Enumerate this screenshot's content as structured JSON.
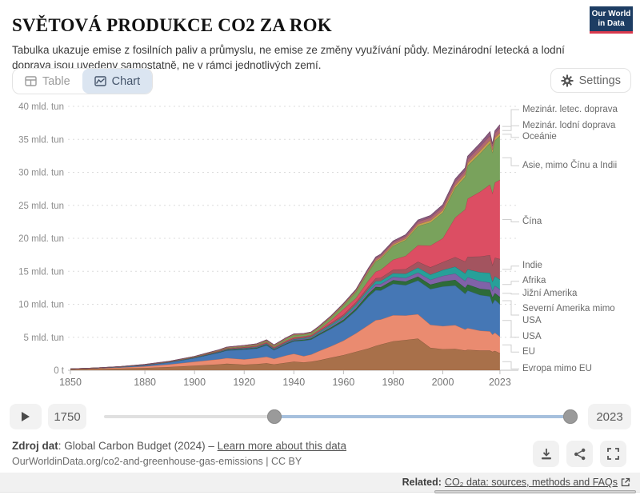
{
  "header": {
    "title": "SVĚTOVÁ PRODUKCE CO2 ZA ROK",
    "subtitle": "Tabulka ukazuje emise z fosilních paliv a průmyslu, ne emise ze změny využívání půdy. Mezinárodní letecká a lodní doprava jsou uvedeny samostatně, ne v rámci jednotlivých zemí.",
    "logo": {
      "line1": "Our World",
      "line2": "in Data",
      "bg": "#1d3d63",
      "accent": "#d93a4e"
    }
  },
  "toolbar": {
    "tab_table": "Table",
    "tab_chart": "Chart",
    "settings_label": "Settings"
  },
  "chart_data": {
    "type": "area",
    "stacked": true,
    "title": "SVĚTOVÁ PRODUKCE CO2 ZA ROK",
    "unit": "mld. tun",
    "y_zero_label": "0 t",
    "xlim": [
      1850,
      2024
    ],
    "ylim": [
      0,
      40
    ],
    "x_ticks": [
      1850,
      1880,
      1900,
      1920,
      1940,
      1960,
      1980,
      2000,
      2023
    ],
    "y_ticks": [
      5,
      10,
      15,
      20,
      25,
      30,
      35,
      40
    ],
    "grid": "horizontal-dashed",
    "legend_position": "right-connected",
    "years": [
      1850,
      1860,
      1870,
      1880,
      1890,
      1900,
      1910,
      1913,
      1920,
      1925,
      1929,
      1932,
      1937,
      1940,
      1944,
      1947,
      1950,
      1955,
      1960,
      1965,
      1970,
      1973,
      1975,
      1980,
      1985,
      1990,
      1995,
      2000,
      2005,
      2009,
      2010,
      2015,
      2019,
      2020,
      2021,
      2023
    ],
    "series": [
      {
        "name": "Evropa mimo EU",
        "color": "#a8704a",
        "values": [
          0.12,
          0.18,
          0.25,
          0.35,
          0.5,
          0.7,
          0.9,
          1.0,
          0.85,
          0.95,
          1.05,
          0.9,
          1.15,
          1.3,
          1.2,
          1.3,
          1.5,
          1.9,
          2.3,
          2.8,
          3.3,
          3.7,
          3.9,
          4.4,
          4.6,
          4.8,
          3.4,
          3.2,
          3.25,
          3.0,
          3.1,
          3.0,
          3.0,
          2.8,
          2.95,
          2.6
        ]
      },
      {
        "name": "EU",
        "color": "#ea8b70",
        "values": [
          0.06,
          0.1,
          0.16,
          0.25,
          0.4,
          0.6,
          0.78,
          0.85,
          0.8,
          0.9,
          1.0,
          0.85,
          1.1,
          1.2,
          0.95,
          1.1,
          1.4,
          1.75,
          2.2,
          2.8,
          3.55,
          3.9,
          3.8,
          3.95,
          3.7,
          3.7,
          3.5,
          3.5,
          3.6,
          3.2,
          3.3,
          3.0,
          2.9,
          2.6,
          2.75,
          2.5
        ]
      },
      {
        "name": "USA",
        "color": "#4577b5",
        "values": [
          0.02,
          0.05,
          0.1,
          0.15,
          0.3,
          0.55,
          1.0,
          1.15,
          1.5,
          1.45,
          1.75,
          1.3,
          1.7,
          1.9,
          2.35,
          2.25,
          2.4,
          2.65,
          2.9,
          3.45,
          4.3,
          4.55,
          4.4,
          4.75,
          4.6,
          5.1,
          5.4,
          6.0,
          6.0,
          5.4,
          5.7,
          5.4,
          5.3,
          4.7,
          5.0,
          4.9
        ]
      },
      {
        "name": "Severní Amerika mimo USA",
        "color": "#2d6b39",
        "values": [
          0.0,
          0.0,
          0.01,
          0.02,
          0.03,
          0.04,
          0.07,
          0.08,
          0.09,
          0.09,
          0.1,
          0.09,
          0.11,
          0.12,
          0.14,
          0.16,
          0.18,
          0.22,
          0.26,
          0.32,
          0.42,
          0.48,
          0.5,
          0.55,
          0.55,
          0.6,
          0.68,
          0.75,
          0.85,
          0.88,
          0.9,
          0.95,
          1.0,
          0.95,
          1.0,
          1.1
        ]
      },
      {
        "name": "Jižní Amerika",
        "color": "#8062a8",
        "values": [
          0.0,
          0.0,
          0.0,
          0.01,
          0.01,
          0.02,
          0.04,
          0.05,
          0.06,
          0.07,
          0.08,
          0.08,
          0.1,
          0.11,
          0.12,
          0.13,
          0.15,
          0.2,
          0.25,
          0.3,
          0.35,
          0.42,
          0.45,
          0.5,
          0.52,
          0.6,
          0.72,
          0.85,
          0.95,
          1.05,
          1.1,
          1.15,
          1.1,
          1.0,
          1.1,
          1.15
        ]
      },
      {
        "name": "Afrika",
        "color": "#27a099",
        "values": [
          0.0,
          0.0,
          0.0,
          0.01,
          0.01,
          0.02,
          0.03,
          0.04,
          0.05,
          0.06,
          0.07,
          0.07,
          0.08,
          0.09,
          0.11,
          0.13,
          0.15,
          0.2,
          0.25,
          0.3,
          0.35,
          0.45,
          0.48,
          0.55,
          0.65,
          0.75,
          0.8,
          0.9,
          1.05,
          1.15,
          1.2,
          1.35,
          1.45,
          1.4,
          1.45,
          1.5
        ]
      },
      {
        "name": "Indie",
        "color": "#a3545f",
        "values": [
          0.01,
          0.01,
          0.02,
          0.03,
          0.04,
          0.05,
          0.08,
          0.09,
          0.1,
          0.11,
          0.12,
          0.12,
          0.14,
          0.15,
          0.17,
          0.18,
          0.2,
          0.25,
          0.3,
          0.35,
          0.4,
          0.45,
          0.48,
          0.55,
          0.7,
          0.9,
          1.1,
          1.2,
          1.45,
          1.8,
          1.9,
          2.4,
          2.7,
          2.5,
          2.8,
          3.1
        ]
      },
      {
        "name": "Čína",
        "color": "#dc4e63",
        "values": [
          0.0,
          0.0,
          0.0,
          0.01,
          0.01,
          0.02,
          0.04,
          0.05,
          0.06,
          0.08,
          0.1,
          0.1,
          0.13,
          0.14,
          0.1,
          0.1,
          0.12,
          0.4,
          0.8,
          0.6,
          0.9,
          1.0,
          1.2,
          1.5,
          2.0,
          2.5,
          3.3,
          3.6,
          6.0,
          7.9,
          8.8,
          9.8,
          10.7,
          10.9,
          11.4,
          12.0
        ]
      },
      {
        "name": "Asie, mimo Čínu a Indii",
        "color": "#79a25c",
        "values": [
          0.0,
          0.0,
          0.01,
          0.02,
          0.02,
          0.03,
          0.06,
          0.07,
          0.1,
          0.13,
          0.16,
          0.17,
          0.25,
          0.3,
          0.25,
          0.25,
          0.3,
          0.42,
          0.55,
          0.9,
          1.3,
          1.55,
          1.7,
          2.1,
          2.4,
          2.9,
          3.5,
          3.9,
          4.5,
          4.9,
          5.0,
          5.8,
          6.3,
          6.1,
          6.4,
          6.7
        ]
      },
      {
        "name": "Oceánie",
        "color": "#c8a04e",
        "values": [
          0.0,
          0.0,
          0.0,
          0.01,
          0.01,
          0.02,
          0.03,
          0.03,
          0.04,
          0.04,
          0.05,
          0.05,
          0.06,
          0.06,
          0.07,
          0.07,
          0.08,
          0.09,
          0.1,
          0.12,
          0.15,
          0.17,
          0.18,
          0.2,
          0.23,
          0.27,
          0.3,
          0.35,
          0.38,
          0.4,
          0.4,
          0.41,
          0.42,
          0.41,
          0.42,
          0.43
        ]
      },
      {
        "name": "Mezinár. lodní doprava",
        "color": "#b06873",
        "values": [
          0.0,
          0.01,
          0.01,
          0.02,
          0.04,
          0.06,
          0.09,
          0.1,
          0.12,
          0.12,
          0.13,
          0.11,
          0.12,
          0.12,
          0.1,
          0.11,
          0.12,
          0.14,
          0.17,
          0.22,
          0.3,
          0.33,
          0.33,
          0.35,
          0.37,
          0.4,
          0.45,
          0.5,
          0.57,
          0.58,
          0.6,
          0.65,
          0.7,
          0.65,
          0.68,
          0.7
        ]
      },
      {
        "name": "Mezinár. letec. doprava",
        "color": "#8d5b80",
        "values": [
          0,
          0,
          0,
          0,
          0,
          0,
          0,
          0,
          0.0,
          0.01,
          0.01,
          0.01,
          0.02,
          0.02,
          0.03,
          0.03,
          0.04,
          0.05,
          0.07,
          0.1,
          0.15,
          0.17,
          0.18,
          0.2,
          0.22,
          0.25,
          0.3,
          0.35,
          0.4,
          0.42,
          0.45,
          0.52,
          0.6,
          0.3,
          0.35,
          0.55
        ]
      }
    ]
  },
  "timeline": {
    "start_year": "1750",
    "end_year": "2023",
    "handle_positions_pct": [
      36.5,
      100
    ]
  },
  "footer": {
    "source_label": "Zdroj dat",
    "source_text": ": Global Carbon Budget (2024) – ",
    "source_link": "Learn more about this data",
    "credit_line": "OurWorldinData.org/co2-and-greenhouse-gas-emissions | CC BY"
  },
  "related": {
    "label": "Related:",
    "link": "CO₂ data: sources, methods and FAQs"
  }
}
